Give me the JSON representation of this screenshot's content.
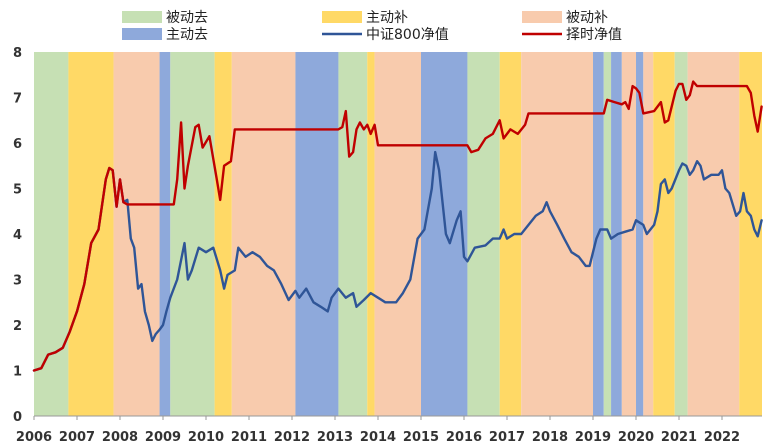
{
  "chart_data": {
    "type": "line",
    "title": "",
    "xlabel": "",
    "ylabel": "",
    "xlim": [
      2006.0,
      2022.93
    ],
    "ylim": [
      0,
      8
    ],
    "yticks": [
      0,
      1,
      2,
      3,
      4,
      5,
      6,
      7,
      8
    ],
    "xticks": [
      "2006",
      "2007",
      "2008",
      "2009",
      "2010",
      "2011",
      "2012",
      "2013",
      "2014",
      "2015",
      "2016",
      "2017",
      "2018",
      "2019",
      "2020",
      "2021",
      "2022"
    ],
    "grid": false,
    "legend_position": "top",
    "regimes": [
      {
        "key": "passive_out",
        "label": "被动去",
        "color": "#C6E0B4"
      },
      {
        "key": "active_fill",
        "label": "主动补",
        "color": "#FFD966"
      },
      {
        "key": "passive_fill",
        "label": "被动补",
        "color": "#F8CBAD"
      },
      {
        "key": "active_out",
        "label": "主动去",
        "color": "#8EA9DB"
      }
    ],
    "regime_periods": [
      {
        "start": 2006.0,
        "end": 2006.8,
        "regime": "passive_out"
      },
      {
        "start": 2006.8,
        "end": 2007.85,
        "regime": "active_fill"
      },
      {
        "start": 2007.85,
        "end": 2008.92,
        "regime": "passive_fill"
      },
      {
        "start": 2008.92,
        "end": 2009.17,
        "regime": "active_out"
      },
      {
        "start": 2009.17,
        "end": 2010.2,
        "regime": "passive_out"
      },
      {
        "start": 2010.2,
        "end": 2010.6,
        "regime": "active_fill"
      },
      {
        "start": 2010.6,
        "end": 2012.08,
        "regime": "passive_fill"
      },
      {
        "start": 2012.08,
        "end": 2013.08,
        "regime": "active_out"
      },
      {
        "start": 2013.08,
        "end": 2013.75,
        "regime": "passive_out"
      },
      {
        "start": 2013.75,
        "end": 2013.92,
        "regime": "active_fill"
      },
      {
        "start": 2013.92,
        "end": 2015.0,
        "regime": "passive_fill"
      },
      {
        "start": 2015.0,
        "end": 2016.08,
        "regime": "active_out"
      },
      {
        "start": 2016.08,
        "end": 2016.83,
        "regime": "passive_out"
      },
      {
        "start": 2016.83,
        "end": 2017.33,
        "regime": "active_fill"
      },
      {
        "start": 2017.33,
        "end": 2019.0,
        "regime": "passive_fill"
      },
      {
        "start": 2019.0,
        "end": 2019.25,
        "regime": "active_out"
      },
      {
        "start": 2019.25,
        "end": 2019.42,
        "regime": "passive_out"
      },
      {
        "start": 2019.42,
        "end": 2019.67,
        "regime": "active_out"
      },
      {
        "start": 2019.67,
        "end": 2020.0,
        "regime": "passive_fill"
      },
      {
        "start": 2020.0,
        "end": 2020.17,
        "regime": "active_out"
      },
      {
        "start": 2020.17,
        "end": 2020.4,
        "regime": "passive_fill"
      },
      {
        "start": 2020.4,
        "end": 2020.9,
        "regime": "active_fill"
      },
      {
        "start": 2020.9,
        "end": 2021.2,
        "regime": "passive_out"
      },
      {
        "start": 2021.2,
        "end": 2022.4,
        "regime": "passive_fill"
      },
      {
        "start": 2022.4,
        "end": 2022.93,
        "regime": "active_fill"
      }
    ],
    "series": [
      {
        "key": "csi800",
        "name": "中证800净值",
        "color": "#2F5597",
        "points": [
          [
            2006.0,
            1.0
          ],
          [
            2006.17,
            1.05
          ],
          [
            2006.33,
            1.35
          ],
          [
            2006.5,
            1.4
          ],
          [
            2006.67,
            1.5
          ],
          [
            2006.83,
            1.85
          ],
          [
            2007.0,
            2.3
          ],
          [
            2007.17,
            2.9
          ],
          [
            2007.33,
            3.8
          ],
          [
            2007.5,
            4.1
          ],
          [
            2007.67,
            5.2
          ],
          [
            2007.75,
            5.45
          ],
          [
            2007.83,
            5.4
          ],
          [
            2007.92,
            4.6
          ],
          [
            2008.0,
            5.2
          ],
          [
            2008.08,
            4.7
          ],
          [
            2008.17,
            4.75
          ],
          [
            2008.25,
            3.9
          ],
          [
            2008.33,
            3.7
          ],
          [
            2008.42,
            2.8
          ],
          [
            2008.5,
            2.9
          ],
          [
            2008.58,
            2.3
          ],
          [
            2008.67,
            2.0
          ],
          [
            2008.75,
            1.65
          ],
          [
            2008.83,
            1.8
          ],
          [
            2008.92,
            1.9
          ],
          [
            2009.0,
            2.0
          ],
          [
            2009.08,
            2.3
          ],
          [
            2009.17,
            2.6
          ],
          [
            2009.33,
            3.0
          ],
          [
            2009.5,
            3.8
          ],
          [
            2009.58,
            3.0
          ],
          [
            2009.67,
            3.2
          ],
          [
            2009.83,
            3.7
          ],
          [
            2010.0,
            3.6
          ],
          [
            2010.17,
            3.7
          ],
          [
            2010.33,
            3.2
          ],
          [
            2010.42,
            2.8
          ],
          [
            2010.5,
            3.1
          ],
          [
            2010.67,
            3.2
          ],
          [
            2010.75,
            3.7
          ],
          [
            2010.92,
            3.5
          ],
          [
            2011.08,
            3.6
          ],
          [
            2011.25,
            3.5
          ],
          [
            2011.42,
            3.3
          ],
          [
            2011.58,
            3.2
          ],
          [
            2011.75,
            2.9
          ],
          [
            2011.92,
            2.55
          ],
          [
            2012.08,
            2.75
          ],
          [
            2012.17,
            2.6
          ],
          [
            2012.33,
            2.8
          ],
          [
            2012.5,
            2.5
          ],
          [
            2012.67,
            2.4
          ],
          [
            2012.83,
            2.3
          ],
          [
            2012.92,
            2.6
          ],
          [
            2013.08,
            2.8
          ],
          [
            2013.25,
            2.6
          ],
          [
            2013.42,
            2.7
          ],
          [
            2013.5,
            2.4
          ],
          [
            2013.67,
            2.55
          ],
          [
            2013.83,
            2.7
          ],
          [
            2014.0,
            2.6
          ],
          [
            2014.17,
            2.5
          ],
          [
            2014.42,
            2.5
          ],
          [
            2014.58,
            2.7
          ],
          [
            2014.75,
            3.0
          ],
          [
            2014.92,
            3.9
          ],
          [
            2015.08,
            4.1
          ],
          [
            2015.25,
            5.0
          ],
          [
            2015.33,
            5.8
          ],
          [
            2015.42,
            5.4
          ],
          [
            2015.58,
            4.0
          ],
          [
            2015.67,
            3.8
          ],
          [
            2015.83,
            4.3
          ],
          [
            2015.92,
            4.5
          ],
          [
            2016.0,
            3.5
          ],
          [
            2016.08,
            3.4
          ],
          [
            2016.25,
            3.7
          ],
          [
            2016.5,
            3.75
          ],
          [
            2016.67,
            3.9
          ],
          [
            2016.83,
            3.9
          ],
          [
            2016.92,
            4.1
          ],
          [
            2017.0,
            3.9
          ],
          [
            2017.17,
            4.0
          ],
          [
            2017.33,
            4.0
          ],
          [
            2017.5,
            4.2
          ],
          [
            2017.67,
            4.4
          ],
          [
            2017.83,
            4.5
          ],
          [
            2017.92,
            4.7
          ],
          [
            2018.0,
            4.5
          ],
          [
            2018.17,
            4.2
          ],
          [
            2018.33,
            3.9
          ],
          [
            2018.5,
            3.6
          ],
          [
            2018.67,
            3.5
          ],
          [
            2018.83,
            3.3
          ],
          [
            2018.92,
            3.3
          ],
          [
            2019.08,
            3.9
          ],
          [
            2019.17,
            4.1
          ],
          [
            2019.33,
            4.1
          ],
          [
            2019.42,
            3.9
          ],
          [
            2019.58,
            4.0
          ],
          [
            2019.75,
            4.05
          ],
          [
            2019.92,
            4.1
          ],
          [
            2020.0,
            4.3
          ],
          [
            2020.17,
            4.2
          ],
          [
            2020.25,
            4.0
          ],
          [
            2020.42,
            4.2
          ],
          [
            2020.5,
            4.5
          ],
          [
            2020.58,
            5.1
          ],
          [
            2020.67,
            5.2
          ],
          [
            2020.75,
            4.9
          ],
          [
            2020.83,
            5.0
          ],
          [
            2021.0,
            5.4
          ],
          [
            2021.08,
            5.55
          ],
          [
            2021.17,
            5.5
          ],
          [
            2021.25,
            5.3
          ],
          [
            2021.33,
            5.4
          ],
          [
            2021.42,
            5.6
          ],
          [
            2021.5,
            5.5
          ],
          [
            2021.58,
            5.2
          ],
          [
            2021.75,
            5.3
          ],
          [
            2021.92,
            5.3
          ],
          [
            2022.0,
            5.4
          ],
          [
            2022.08,
            5.0
          ],
          [
            2022.17,
            4.9
          ],
          [
            2022.33,
            4.4
          ],
          [
            2022.42,
            4.5
          ],
          [
            2022.5,
            4.9
          ],
          [
            2022.58,
            4.5
          ],
          [
            2022.67,
            4.4
          ],
          [
            2022.75,
            4.1
          ],
          [
            2022.83,
            3.95
          ],
          [
            2022.92,
            4.3
          ]
        ]
      },
      {
        "key": "timing",
        "name": "择时净值",
        "color": "#C00000",
        "points": [
          [
            2006.0,
            1.0
          ],
          [
            2006.17,
            1.05
          ],
          [
            2006.33,
            1.35
          ],
          [
            2006.5,
            1.4
          ],
          [
            2006.67,
            1.5
          ],
          [
            2006.83,
            1.85
          ],
          [
            2007.0,
            2.3
          ],
          [
            2007.17,
            2.9
          ],
          [
            2007.33,
            3.8
          ],
          [
            2007.5,
            4.1
          ],
          [
            2007.67,
            5.2
          ],
          [
            2007.75,
            5.45
          ],
          [
            2007.83,
            5.4
          ],
          [
            2007.92,
            4.6
          ],
          [
            2008.0,
            5.2
          ],
          [
            2008.08,
            4.7
          ],
          [
            2008.17,
            4.65
          ],
          [
            2009.0,
            4.65
          ],
          [
            2009.25,
            4.65
          ],
          [
            2009.33,
            5.2
          ],
          [
            2009.42,
            6.45
          ],
          [
            2009.5,
            5.0
          ],
          [
            2009.58,
            5.5
          ],
          [
            2009.75,
            6.35
          ],
          [
            2009.83,
            6.4
          ],
          [
            2009.92,
            5.9
          ],
          [
            2010.08,
            6.15
          ],
          [
            2010.25,
            5.2
          ],
          [
            2010.33,
            4.75
          ],
          [
            2010.42,
            5.5
          ],
          [
            2010.58,
            5.6
          ],
          [
            2010.67,
            6.3
          ],
          [
            2013.08,
            6.3
          ],
          [
            2013.17,
            6.35
          ],
          [
            2013.25,
            6.7
          ],
          [
            2013.33,
            5.7
          ],
          [
            2013.42,
            5.8
          ],
          [
            2013.5,
            6.3
          ],
          [
            2013.58,
            6.45
          ],
          [
            2013.67,
            6.3
          ],
          [
            2013.75,
            6.4
          ],
          [
            2013.83,
            6.2
          ],
          [
            2013.92,
            6.4
          ],
          [
            2014.0,
            5.95
          ],
          [
            2016.08,
            5.95
          ],
          [
            2016.17,
            5.8
          ],
          [
            2016.33,
            5.85
          ],
          [
            2016.5,
            6.1
          ],
          [
            2016.67,
            6.2
          ],
          [
            2016.83,
            6.5
          ],
          [
            2016.92,
            6.1
          ],
          [
            2017.08,
            6.3
          ],
          [
            2017.25,
            6.2
          ],
          [
            2017.42,
            6.4
          ],
          [
            2017.5,
            6.65
          ],
          [
            2019.25,
            6.65
          ],
          [
            2019.33,
            6.95
          ],
          [
            2019.5,
            6.9
          ],
          [
            2019.67,
            6.85
          ],
          [
            2019.75,
            6.9
          ],
          [
            2019.83,
            6.75
          ],
          [
            2019.92,
            7.25
          ],
          [
            2020.0,
            7.2
          ],
          [
            2020.08,
            7.1
          ],
          [
            2020.17,
            6.65
          ],
          [
            2020.42,
            6.7
          ],
          [
            2020.58,
            6.9
          ],
          [
            2020.67,
            6.45
          ],
          [
            2020.75,
            6.5
          ],
          [
            2020.83,
            6.8
          ],
          [
            2020.92,
            7.15
          ],
          [
            2021.0,
            7.3
          ],
          [
            2021.08,
            7.3
          ],
          [
            2021.17,
            6.95
          ],
          [
            2021.25,
            7.05
          ],
          [
            2021.33,
            7.35
          ],
          [
            2021.42,
            7.25
          ],
          [
            2022.42,
            7.25
          ],
          [
            2022.58,
            7.25
          ],
          [
            2022.67,
            7.1
          ],
          [
            2022.75,
            6.6
          ],
          [
            2022.83,
            6.25
          ],
          [
            2022.92,
            6.8
          ]
        ]
      }
    ]
  }
}
